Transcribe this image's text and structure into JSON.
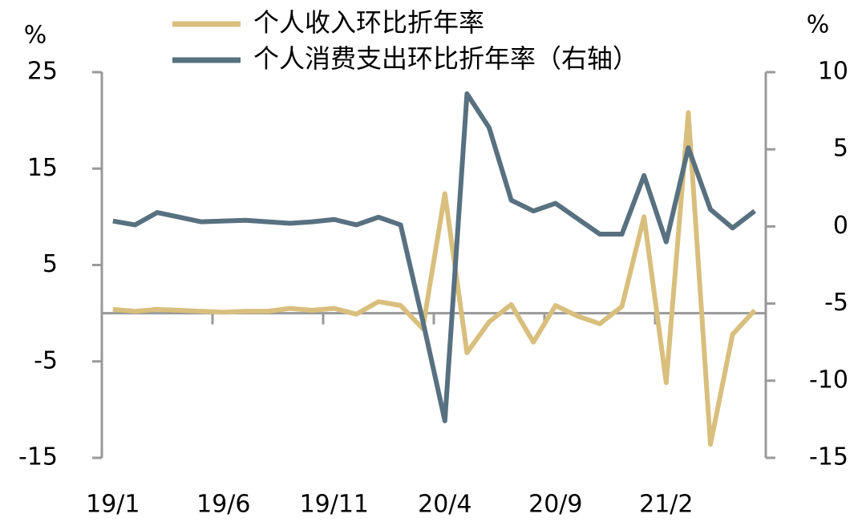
{
  "chart_data": {
    "type": "line",
    "categories": [
      "19/1",
      null,
      null,
      null,
      null,
      "19/6",
      null,
      null,
      null,
      null,
      "19/11",
      null,
      null,
      null,
      null,
      "20/4",
      null,
      null,
      null,
      null,
      "20/9",
      null,
      null,
      null,
      null,
      "21/2",
      null,
      null,
      null,
      null
    ],
    "ylabel": "%",
    "y2label": "%",
    "ylim": [
      -15,
      25
    ],
    "yticks": [
      -15,
      -5,
      5,
      15,
      25
    ],
    "y2lim": [
      -15,
      10
    ],
    "y2ticks": [
      -15,
      -10,
      -5,
      0,
      5,
      10
    ],
    "legend": "top",
    "series": [
      {
        "name": "个人收入环比折年率",
        "color": "#d9bf7e",
        "values": [
          0.4,
          0.2,
          0.4,
          0.3,
          0.2,
          0.1,
          0.2,
          0.2,
          0.5,
          0.3,
          0.5,
          -0.1,
          1.2,
          0.8,
          -1.6,
          12.4,
          -4.1,
          -0.9,
          0.9,
          -3.0,
          0.8,
          -0.3,
          -1.1,
          0.7,
          10.0,
          -7.2,
          20.8,
          -13.6,
          -2.2,
          0.3
        ]
      },
      {
        "name": "个人消费支出环比折年率（右轴）",
        "color": "#587180",
        "axis": "y2",
        "values": [
          0.35,
          0.1,
          0.9,
          0.6,
          0.3,
          0.35,
          0.4,
          0.3,
          0.2,
          0.3,
          0.45,
          0.1,
          0.6,
          0.1,
          -6.1,
          -12.6,
          8.6,
          6.4,
          1.7,
          1.0,
          1.5,
          0.5,
          -0.5,
          -0.5,
          3.3,
          -1.0,
          5.1,
          1.1,
          -0.1,
          1.0
        ]
      }
    ]
  }
}
